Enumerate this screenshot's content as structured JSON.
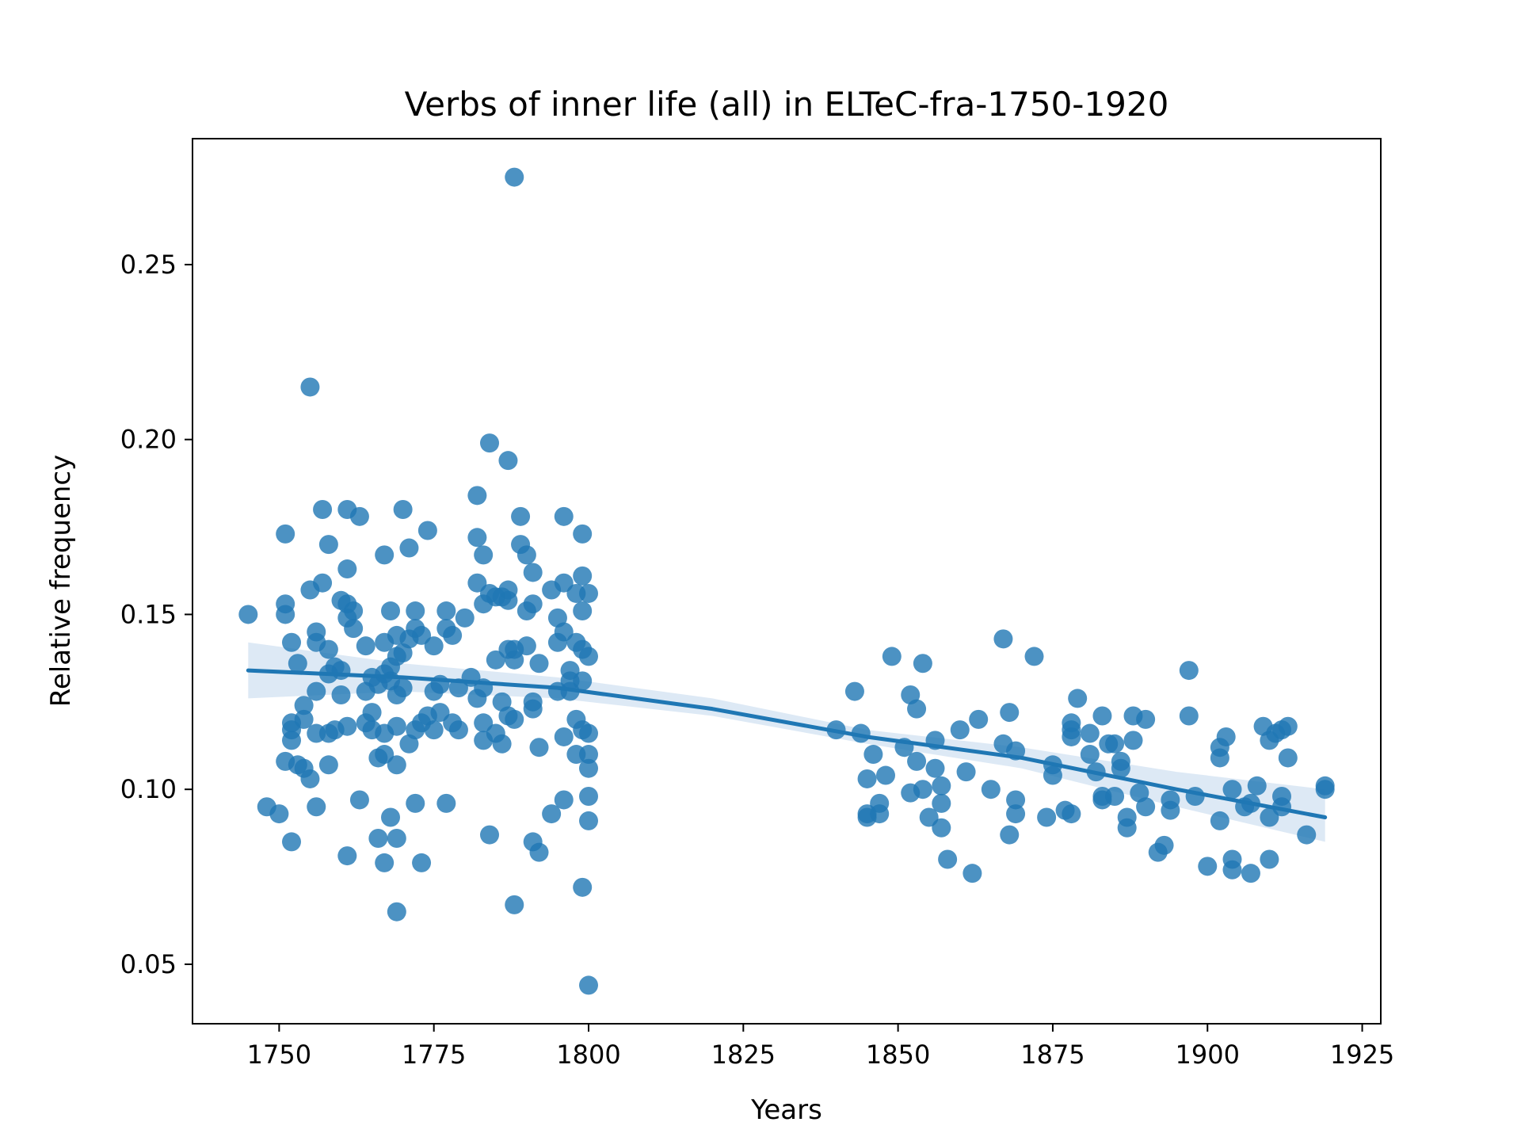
{
  "chart_data": {
    "type": "scatter",
    "title": "Verbs of inner life (all) in ELTeC-fra-1750-1920",
    "xlabel": "Years",
    "ylabel": "Relative frequency",
    "xlim": [
      1736,
      1928
    ],
    "ylim": [
      0.033,
      0.286
    ],
    "xticks": [
      1750,
      1775,
      1800,
      1825,
      1850,
      1875,
      1900,
      1925
    ],
    "yticks": [
      0.05,
      0.1,
      0.15,
      0.2,
      0.25
    ],
    "ytick_labels": [
      "0.05",
      "0.10",
      "0.15",
      "0.20",
      "0.25"
    ],
    "grid": false,
    "legend": "none",
    "colors": {
      "points": "#1f77b4",
      "line": "#1f77b4",
      "band": "#c6dbef"
    },
    "series": [
      {
        "points": [
          [
            1745,
            0.15
          ],
          [
            1748,
            0.095
          ],
          [
            1750,
            0.093
          ],
          [
            1751,
            0.173
          ],
          [
            1751,
            0.153
          ],
          [
            1751,
            0.15
          ],
          [
            1751,
            0.108
          ],
          [
            1752,
            0.142
          ],
          [
            1752,
            0.119
          ],
          [
            1752,
            0.117
          ],
          [
            1752,
            0.114
          ],
          [
            1752,
            0.085
          ],
          [
            1753,
            0.136
          ],
          [
            1753,
            0.107
          ],
          [
            1754,
            0.124
          ],
          [
            1754,
            0.12
          ],
          [
            1754,
            0.106
          ],
          [
            1755,
            0.215
          ],
          [
            1755,
            0.157
          ],
          [
            1755,
            0.103
          ],
          [
            1756,
            0.145
          ],
          [
            1756,
            0.142
          ],
          [
            1756,
            0.128
          ],
          [
            1756,
            0.116
          ],
          [
            1756,
            0.095
          ],
          [
            1757,
            0.18
          ],
          [
            1757,
            0.159
          ],
          [
            1758,
            0.17
          ],
          [
            1758,
            0.14
          ],
          [
            1758,
            0.133
          ],
          [
            1758,
            0.116
          ],
          [
            1758,
            0.107
          ],
          [
            1759,
            0.135
          ],
          [
            1759,
            0.117
          ],
          [
            1760,
            0.154
          ],
          [
            1760,
            0.134
          ],
          [
            1760,
            0.127
          ],
          [
            1761,
            0.18
          ],
          [
            1761,
            0.163
          ],
          [
            1761,
            0.153
          ],
          [
            1761,
            0.149
          ],
          [
            1761,
            0.118
          ],
          [
            1761,
            0.081
          ],
          [
            1762,
            0.151
          ],
          [
            1762,
            0.146
          ],
          [
            1763,
            0.178
          ],
          [
            1763,
            0.097
          ],
          [
            1764,
            0.141
          ],
          [
            1764,
            0.128
          ],
          [
            1764,
            0.119
          ],
          [
            1765,
            0.132
          ],
          [
            1765,
            0.122
          ],
          [
            1765,
            0.117
          ],
          [
            1766,
            0.13
          ],
          [
            1766,
            0.109
          ],
          [
            1766,
            0.086
          ],
          [
            1767,
            0.167
          ],
          [
            1767,
            0.142
          ],
          [
            1767,
            0.133
          ],
          [
            1767,
            0.116
          ],
          [
            1767,
            0.11
          ],
          [
            1767,
            0.079
          ],
          [
            1768,
            0.151
          ],
          [
            1768,
            0.135
          ],
          [
            1768,
            0.131
          ],
          [
            1768,
            0.092
          ],
          [
            1769,
            0.144
          ],
          [
            1769,
            0.138
          ],
          [
            1769,
            0.127
          ],
          [
            1769,
            0.118
          ],
          [
            1769,
            0.107
          ],
          [
            1769,
            0.086
          ],
          [
            1769,
            0.065
          ],
          [
            1770,
            0.18
          ],
          [
            1770,
            0.139
          ],
          [
            1770,
            0.129
          ],
          [
            1771,
            0.169
          ],
          [
            1771,
            0.143
          ],
          [
            1771,
            0.113
          ],
          [
            1772,
            0.151
          ],
          [
            1772,
            0.146
          ],
          [
            1772,
            0.117
          ],
          [
            1772,
            0.096
          ],
          [
            1773,
            0.144
          ],
          [
            1773,
            0.119
          ],
          [
            1773,
            0.079
          ],
          [
            1774,
            0.174
          ],
          [
            1774,
            0.121
          ],
          [
            1775,
            0.141
          ],
          [
            1775,
            0.128
          ],
          [
            1775,
            0.117
          ],
          [
            1776,
            0.13
          ],
          [
            1776,
            0.122
          ],
          [
            1777,
            0.151
          ],
          [
            1777,
            0.146
          ],
          [
            1777,
            0.096
          ],
          [
            1778,
            0.144
          ],
          [
            1778,
            0.119
          ],
          [
            1779,
            0.129
          ],
          [
            1779,
            0.117
          ],
          [
            1780,
            0.149
          ],
          [
            1781,
            0.132
          ],
          [
            1782,
            0.184
          ],
          [
            1782,
            0.172
          ],
          [
            1782,
            0.159
          ],
          [
            1782,
            0.126
          ],
          [
            1783,
            0.167
          ],
          [
            1783,
            0.153
          ],
          [
            1783,
            0.129
          ],
          [
            1783,
            0.119
          ],
          [
            1783,
            0.114
          ],
          [
            1784,
            0.199
          ],
          [
            1784,
            0.156
          ],
          [
            1784,
            0.087
          ],
          [
            1785,
            0.155
          ],
          [
            1785,
            0.137
          ],
          [
            1785,
            0.116
          ],
          [
            1786,
            0.155
          ],
          [
            1786,
            0.125
          ],
          [
            1786,
            0.113
          ],
          [
            1787,
            0.194
          ],
          [
            1787,
            0.157
          ],
          [
            1787,
            0.154
          ],
          [
            1787,
            0.14
          ],
          [
            1787,
            0.121
          ],
          [
            1788,
            0.275
          ],
          [
            1788,
            0.14
          ],
          [
            1788,
            0.137
          ],
          [
            1788,
            0.12
          ],
          [
            1788,
            0.067
          ],
          [
            1789,
            0.178
          ],
          [
            1789,
            0.17
          ],
          [
            1790,
            0.167
          ],
          [
            1790,
            0.151
          ],
          [
            1790,
            0.141
          ],
          [
            1791,
            0.162
          ],
          [
            1791,
            0.153
          ],
          [
            1791,
            0.125
          ],
          [
            1791,
            0.123
          ],
          [
            1791,
            0.085
          ],
          [
            1792,
            0.136
          ],
          [
            1792,
            0.112
          ],
          [
            1792,
            0.082
          ],
          [
            1794,
            0.157
          ],
          [
            1794,
            0.093
          ],
          [
            1795,
            0.149
          ],
          [
            1795,
            0.142
          ],
          [
            1795,
            0.128
          ],
          [
            1796,
            0.178
          ],
          [
            1796,
            0.159
          ],
          [
            1796,
            0.145
          ],
          [
            1796,
            0.115
          ],
          [
            1796,
            0.097
          ],
          [
            1797,
            0.134
          ],
          [
            1797,
            0.131
          ],
          [
            1797,
            0.128
          ],
          [
            1798,
            0.156
          ],
          [
            1798,
            0.142
          ],
          [
            1798,
            0.12
          ],
          [
            1798,
            0.11
          ],
          [
            1799,
            0.173
          ],
          [
            1799,
            0.161
          ],
          [
            1799,
            0.151
          ],
          [
            1799,
            0.14
          ],
          [
            1799,
            0.131
          ],
          [
            1799,
            0.117
          ],
          [
            1799,
            0.072
          ],
          [
            1800,
            0.156
          ],
          [
            1800,
            0.138
          ],
          [
            1800,
            0.116
          ],
          [
            1800,
            0.11
          ],
          [
            1800,
            0.106
          ],
          [
            1800,
            0.098
          ],
          [
            1800,
            0.091
          ],
          [
            1800,
            0.044
          ],
          [
            1840,
            0.117
          ],
          [
            1843,
            0.128
          ],
          [
            1844,
            0.116
          ],
          [
            1845,
            0.103
          ],
          [
            1845,
            0.093
          ],
          [
            1845,
            0.092
          ],
          [
            1846,
            0.11
          ],
          [
            1847,
            0.096
          ],
          [
            1847,
            0.093
          ],
          [
            1848,
            0.104
          ],
          [
            1849,
            0.138
          ],
          [
            1851,
            0.112
          ],
          [
            1852,
            0.127
          ],
          [
            1852,
            0.099
          ],
          [
            1853,
            0.123
          ],
          [
            1853,
            0.108
          ],
          [
            1854,
            0.136
          ],
          [
            1854,
            0.1
          ],
          [
            1855,
            0.092
          ],
          [
            1856,
            0.114
          ],
          [
            1856,
            0.106
          ],
          [
            1857,
            0.101
          ],
          [
            1857,
            0.096
          ],
          [
            1857,
            0.089
          ],
          [
            1858,
            0.08
          ],
          [
            1860,
            0.117
          ],
          [
            1861,
            0.105
          ],
          [
            1862,
            0.076
          ],
          [
            1863,
            0.12
          ],
          [
            1865,
            0.1
          ],
          [
            1867,
            0.143
          ],
          [
            1867,
            0.113
          ],
          [
            1868,
            0.122
          ],
          [
            1868,
            0.087
          ],
          [
            1869,
            0.111
          ],
          [
            1869,
            0.097
          ],
          [
            1869,
            0.093
          ],
          [
            1872,
            0.138
          ],
          [
            1874,
            0.092
          ],
          [
            1875,
            0.107
          ],
          [
            1875,
            0.104
          ],
          [
            1877,
            0.094
          ],
          [
            1878,
            0.119
          ],
          [
            1878,
            0.117
          ],
          [
            1878,
            0.115
          ],
          [
            1878,
            0.093
          ],
          [
            1879,
            0.126
          ],
          [
            1881,
            0.116
          ],
          [
            1881,
            0.11
          ],
          [
            1882,
            0.105
          ],
          [
            1883,
            0.121
          ],
          [
            1883,
            0.098
          ],
          [
            1883,
            0.097
          ],
          [
            1884,
            0.113
          ],
          [
            1885,
            0.113
          ],
          [
            1885,
            0.098
          ],
          [
            1886,
            0.108
          ],
          [
            1886,
            0.106
          ],
          [
            1887,
            0.092
          ],
          [
            1887,
            0.089
          ],
          [
            1888,
            0.121
          ],
          [
            1888,
            0.114
          ],
          [
            1889,
            0.099
          ],
          [
            1890,
            0.12
          ],
          [
            1890,
            0.095
          ],
          [
            1892,
            0.082
          ],
          [
            1893,
            0.084
          ],
          [
            1894,
            0.097
          ],
          [
            1894,
            0.094
          ],
          [
            1897,
            0.134
          ],
          [
            1897,
            0.121
          ],
          [
            1898,
            0.098
          ],
          [
            1900,
            0.078
          ],
          [
            1902,
            0.112
          ],
          [
            1902,
            0.109
          ],
          [
            1902,
            0.091
          ],
          [
            1903,
            0.115
          ],
          [
            1904,
            0.1
          ],
          [
            1904,
            0.08
          ],
          [
            1904,
            0.077
          ],
          [
            1906,
            0.095
          ],
          [
            1907,
            0.096
          ],
          [
            1907,
            0.076
          ],
          [
            1908,
            0.101
          ],
          [
            1909,
            0.118
          ],
          [
            1910,
            0.114
          ],
          [
            1910,
            0.092
          ],
          [
            1910,
            0.08
          ],
          [
            1911,
            0.116
          ],
          [
            1912,
            0.117
          ],
          [
            1912,
            0.098
          ],
          [
            1912,
            0.095
          ],
          [
            1913,
            0.118
          ],
          [
            1913,
            0.109
          ],
          [
            1916,
            0.087
          ],
          [
            1919,
            0.101
          ],
          [
            1919,
            0.1
          ]
        ]
      }
    ],
    "regression": {
      "x": [
        1745,
        1770,
        1795,
        1820,
        1845,
        1870,
        1895,
        1919
      ],
      "y": [
        0.134,
        0.132,
        0.129,
        0.123,
        0.115,
        0.109,
        0.1,
        0.092
      ],
      "ci_low": [
        0.126,
        0.128,
        0.126,
        0.121,
        0.113,
        0.106,
        0.095,
        0.085
      ],
      "ci_high": [
        0.142,
        0.136,
        0.132,
        0.126,
        0.117,
        0.112,
        0.105,
        0.1
      ]
    }
  }
}
